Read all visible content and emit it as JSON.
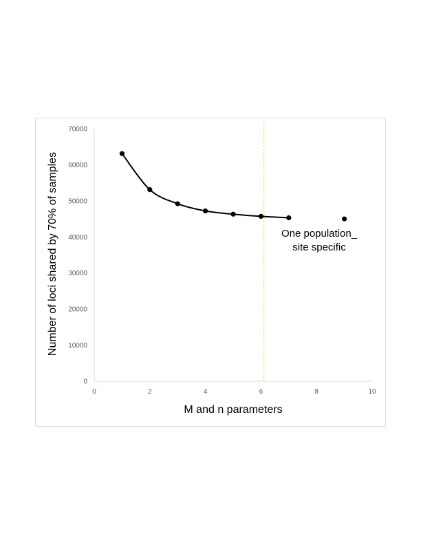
{
  "chart_data": {
    "type": "scatter",
    "title": "",
    "xlabel": "M and n parameters",
    "ylabel": "Number of loci shared by 70% of samples",
    "xlim": [
      0,
      10
    ],
    "ylim": [
      0,
      70000
    ],
    "x_ticks": [
      "0",
      "2",
      "4",
      "6",
      "8",
      "10"
    ],
    "y_ticks": [
      "0",
      "10000",
      "20000",
      "30000",
      "40000",
      "50000",
      "60000",
      "70000"
    ],
    "grid": false,
    "legend": "none",
    "series": [
      {
        "style": "smoothed-line-with-markers",
        "color": "#000000",
        "x": [
          1,
          2,
          3,
          4,
          5,
          6,
          7
        ],
        "y": [
          63100,
          53100,
          49200,
          47200,
          46300,
          45700,
          45300
        ]
      },
      {
        "style": "marker-only",
        "color": "#000000",
        "x": [
          9
        ],
        "y": [
          45000
        ]
      }
    ],
    "reference_line": {
      "x": 6.1,
      "color": "#ffe699",
      "style": "dashed"
    },
    "annotation": {
      "lines": [
        "One population_",
        "site specific"
      ]
    }
  }
}
